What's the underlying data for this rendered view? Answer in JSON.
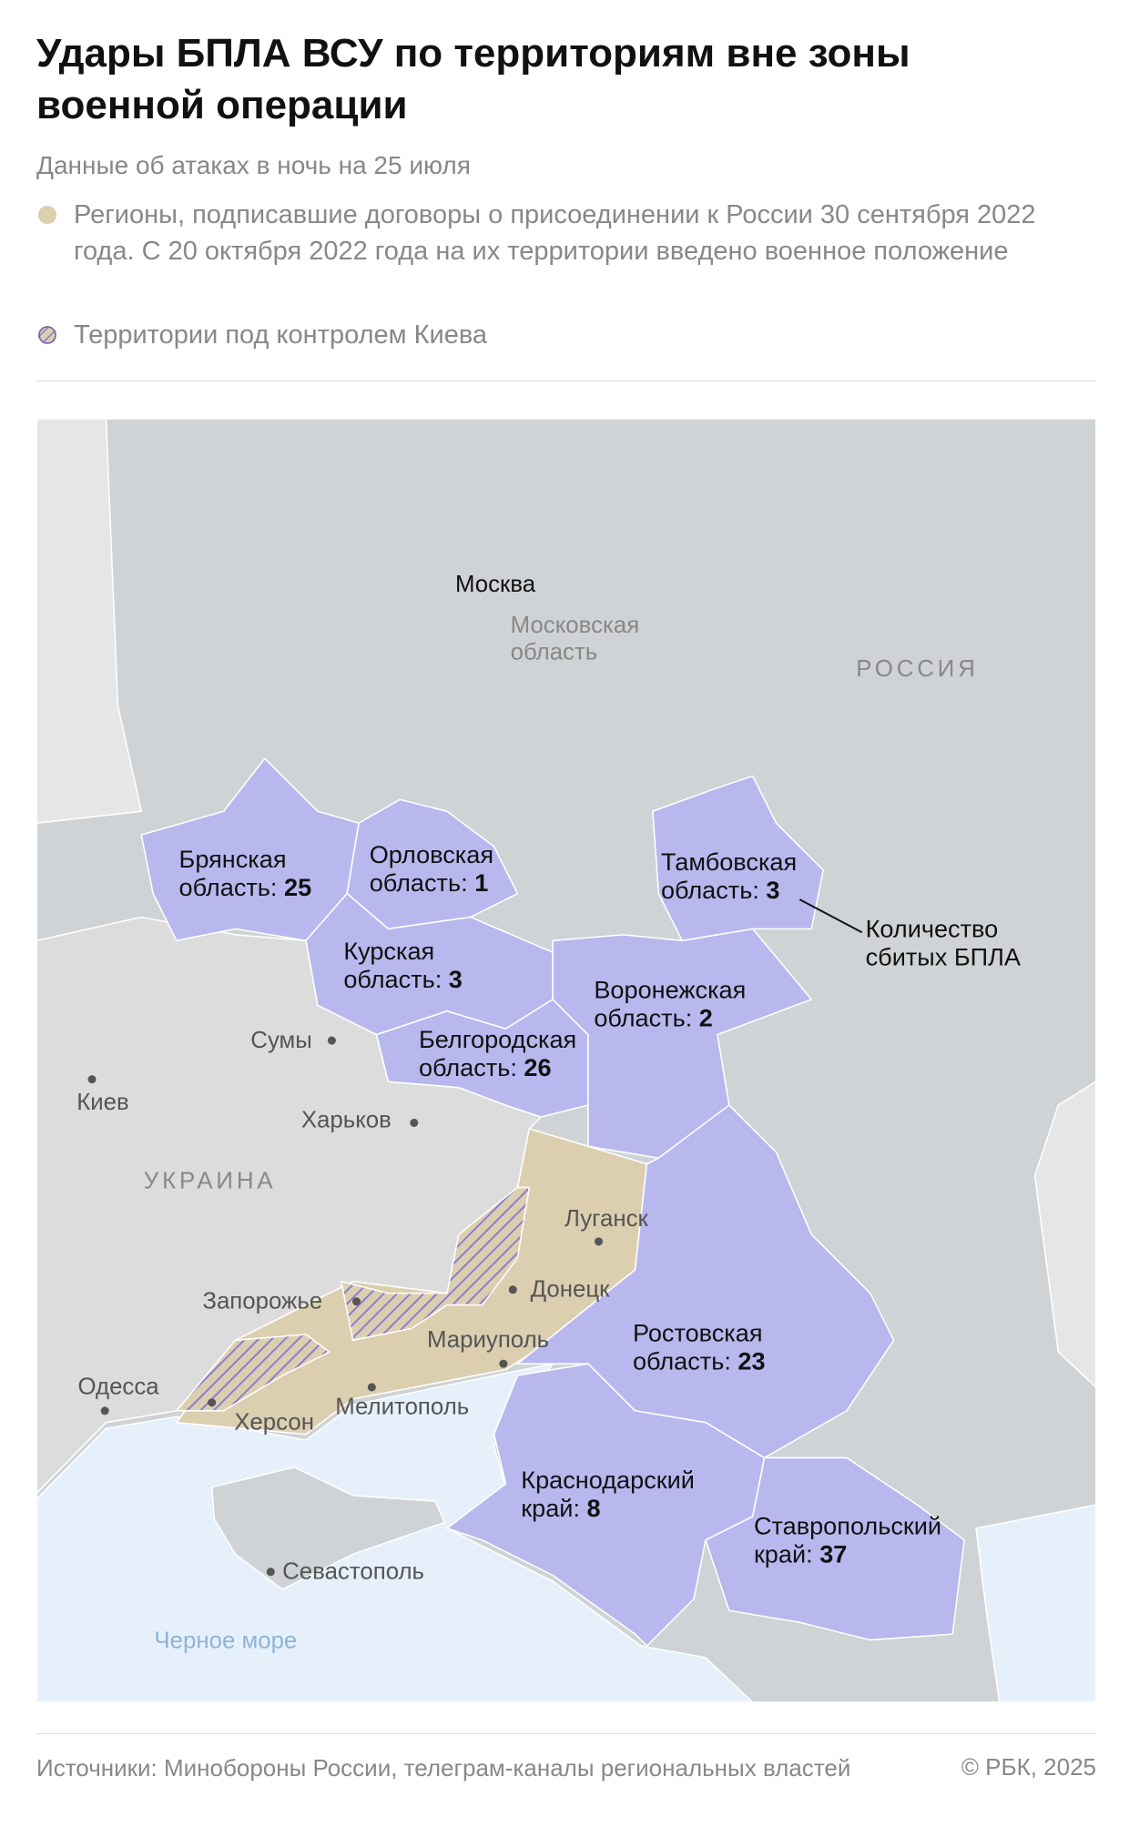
{
  "header": {
    "title": "Удары БПЛА ВСУ по территориям вне зоны военной операции",
    "subtitle": "Данные об атаках в ночь на 25 июля",
    "legend": [
      "Регионы, подписавшие договоры о присоединении к России 30 сентября 2022 года. С 20 октября 2022 года на их территории введено военное положение",
      "Территории под контролем Киева"
    ]
  },
  "map": {
    "regions": [
      {
        "name": [
          "Брянская",
          "область:"
        ],
        "count": 25
      },
      {
        "name": [
          "Орловская",
          "область:"
        ],
        "count": 1
      },
      {
        "name": [
          "Курская",
          "область:"
        ],
        "count": 3
      },
      {
        "name": [
          "Тамбовская",
          "область:"
        ],
        "count": 3
      },
      {
        "name": [
          "Воронежская",
          "область:"
        ],
        "count": 2
      },
      {
        "name": [
          "Белгородская",
          "область:"
        ],
        "count": 26
      },
      {
        "name": [
          "Ростовская",
          "область:"
        ],
        "count": 23
      },
      {
        "name": [
          "Краснодарский",
          "край:"
        ],
        "count": 8
      },
      {
        "name": [
          "Ставропольский",
          "край:"
        ],
        "count": 37
      }
    ],
    "annotation": [
      "Количество",
      "сбитых БПЛА"
    ],
    "places": {
      "moscow": "Москва",
      "moscow_oblast": [
        "Московская",
        "область"
      ],
      "russia": "РОССИЯ",
      "ukraine": "УКРАИНА",
      "sumy": "Сумы",
      "kyiv": "Киев",
      "kharkiv": "Харьков",
      "luhansk": "Луганск",
      "donetsk": "Донецк",
      "zaporizhzhia": "Запорожье",
      "mariupol": "Мариуполь",
      "odesa": "Одесса",
      "kherson": "Херсон",
      "melitopol": "Мелитополь",
      "sevastopol": "Севастополь",
      "black_sea": "Черное море"
    }
  },
  "footer": {
    "source": "Источники: Минобороны России, телеграм-каналы региональных властей",
    "copyright": "© РБК, 2025"
  }
}
